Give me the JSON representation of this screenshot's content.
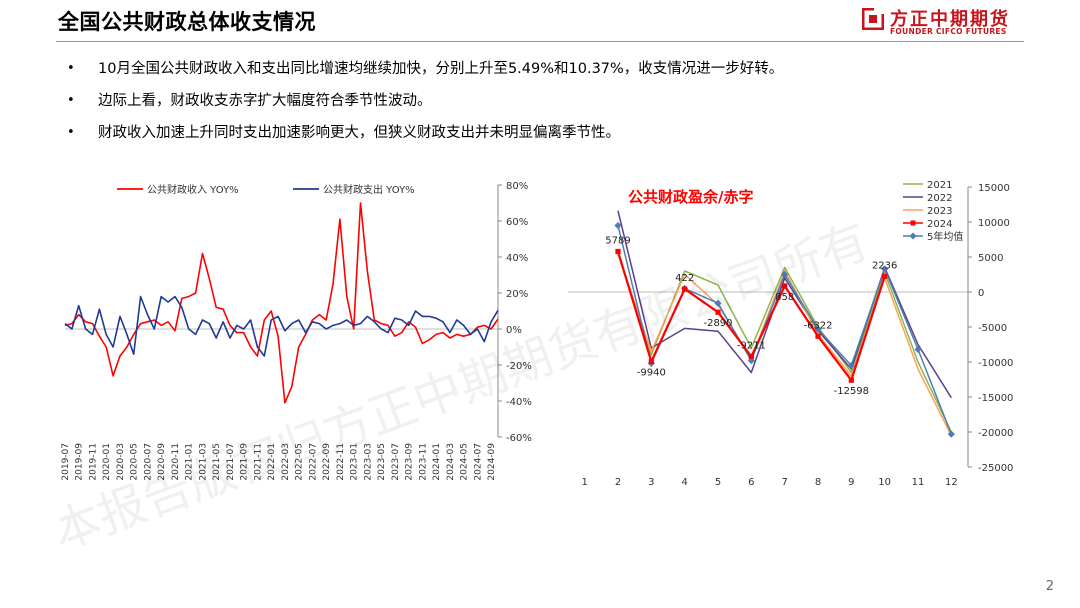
{
  "page": {
    "title": "全国公共财政总体收支情况",
    "page_number": "2",
    "watermark": "本报告版权归方正中期期货有限公司所有"
  },
  "logo": {
    "name_cn": "方正中期期货",
    "name_en": "FOUNDER CIFCO FUTURES",
    "color": "#c8151b"
  },
  "bullets": [
    "10月全国公共财政收入和支出同比增速均继续加快，分别上升至5.49%和10.37%，收支情况进一步好转。",
    "边际上看，财政收支赤字扩大幅度符合季节性波动。",
    "财政收入加速上升同时支出加速影响更大，但狭义财政支出并未明显偏离季节性。"
  ],
  "bullet_marker": "•",
  "chart_data": [
    {
      "type": "line",
      "title": "",
      "x": [
        "2019-07",
        "2019-08",
        "2019-09",
        "2019-10",
        "2019-11",
        "2019-12",
        "2020-01",
        "2020-02",
        "2020-03",
        "2020-04",
        "2020-05",
        "2020-06",
        "2020-07",
        "2020-08",
        "2020-09",
        "2020-10",
        "2020-11",
        "2020-12",
        "2021-01",
        "2021-02",
        "2021-03",
        "2021-04",
        "2021-05",
        "2021-06",
        "2021-07",
        "2021-08",
        "2021-09",
        "2021-10",
        "2021-11",
        "2021-12",
        "2022-01",
        "2022-02",
        "2022-03",
        "2022-04",
        "2022-05",
        "2022-06",
        "2022-07",
        "2022-08",
        "2022-09",
        "2022-10",
        "2022-11",
        "2022-12",
        "2023-01",
        "2023-02",
        "2023-03",
        "2023-04",
        "2023-05",
        "2023-06",
        "2023-07",
        "2023-08",
        "2023-09",
        "2023-10",
        "2023-11",
        "2023-12",
        "2024-01",
        "2024-02",
        "2024-03",
        "2024-04",
        "2024-05",
        "2024-06",
        "2024-07",
        "2024-08",
        "2024-09",
        "2024-10"
      ],
      "x_tick_labels": [
        "2019-07",
        "2019-09",
        "2019-11",
        "2020-01",
        "2020-03",
        "2020-05",
        "2020-07",
        "2020-09",
        "2020-11",
        "2021-01",
        "2021-03",
        "2021-05",
        "2021-07",
        "2021-09",
        "2021-11",
        "2022-01",
        "2022-03",
        "2022-05",
        "2022-07",
        "2022-09",
        "2022-11",
        "2023-01",
        "2023-03",
        "2023-05",
        "2023-07",
        "2023-09",
        "2023-11",
        "2024-01",
        "2024-03",
        "2024-05",
        "2024-07",
        "2024-09"
      ],
      "series": [
        {
          "name": "公共财政收入 YOY%",
          "color": "#ff0000",
          "values": [
            2,
            3,
            8,
            4,
            3,
            -4,
            -10,
            -26,
            -15,
            -10,
            -3,
            3,
            4,
            5,
            2,
            4,
            -1,
            17,
            18,
            20,
            42,
            28,
            12,
            11,
            2,
            -2,
            -2,
            -10,
            -15,
            5,
            10,
            -4,
            -41,
            -32,
            -10,
            -3,
            5,
            8,
            5,
            25,
            61,
            18,
            0,
            70,
            32,
            5,
            3,
            2,
            -4,
            -2,
            4,
            1,
            -8,
            -6,
            -3,
            -2,
            -5,
            -3,
            -4,
            -3,
            1,
            2,
            0,
            5.49
          ]
        },
        {
          "name": "公共财政支出 YOY%",
          "color": "#1f3a93",
          "values": [
            3,
            0,
            13,
            0,
            -3,
            11,
            -3,
            -10,
            7,
            -3,
            -14,
            18,
            8,
            0,
            18,
            15,
            18,
            12,
            0,
            -3,
            5,
            3,
            -5,
            4,
            -5,
            2,
            0,
            5,
            -10,
            -15,
            5,
            7,
            -1,
            3,
            5,
            -2,
            4,
            3,
            0,
            2,
            3,
            5,
            2,
            3,
            7,
            4,
            0,
            -2,
            6,
            5,
            2,
            10,
            7,
            7,
            6,
            4,
            -2,
            5,
            2,
            -3,
            0,
            -7,
            4,
            10.37
          ]
        }
      ],
      "yaxis": {
        "position": "right",
        "ylim": [
          -60,
          80
        ],
        "ticks": [
          "80%",
          "60%",
          "40%",
          "20%",
          "0%",
          "-20%",
          "-40%",
          "-60%"
        ]
      },
      "legend": {
        "placement": "top"
      },
      "grid": false
    },
    {
      "type": "line",
      "title": "公共财政盈余/赤字",
      "title_color": "#ff0000",
      "x": [
        1,
        2,
        3,
        4,
        5,
        6,
        7,
        8,
        9,
        10,
        11,
        12
      ],
      "series": [
        {
          "name": "2021",
          "color": "#8fb54a",
          "values": [
            null,
            5400,
            -9000,
            3000,
            1000,
            -8000,
            3500,
            -5000,
            -11500,
            2800,
            -10000,
            -20000
          ]
        },
        {
          "name": "2022",
          "color": "#5b3f8c",
          "values": [
            null,
            11600,
            -8000,
            -5200,
            -5600,
            -11500,
            2000,
            -5500,
            -11000,
            3500,
            -7500,
            -15100
          ]
        },
        {
          "name": "2023",
          "color": "#f7a35c",
          "values": [
            null,
            5500,
            -8500,
            2500,
            -1800,
            -9500,
            3000,
            -6000,
            -12000,
            2000,
            -11000,
            -20500
          ]
        },
        {
          "name": "2024",
          "color": "#ff0000",
          "values": [
            null,
            5789,
            -9940,
            422,
            -2890,
            -9211,
            858,
            -6322,
            -12598,
            2236,
            null,
            null
          ]
        },
        {
          "name": "5年均值",
          "color": "#4f7cb5",
          "values": [
            null,
            9500,
            -10200,
            500,
            -1600,
            -9800,
            2500,
            -5300,
            -10500,
            3300,
            -8200,
            -20300
          ]
        }
      ],
      "data_labels": [
        "5789",
        "-9940",
        "422",
        "-2890",
        "-9211",
        "858",
        "-6322",
        "-12598",
        "2236"
      ],
      "yaxis": {
        "position": "right",
        "ylim": [
          -25000,
          15000
        ],
        "ticks": [
          "15000",
          "10000",
          "5000",
          "0",
          "-5000",
          "-10000",
          "-15000",
          "-20000",
          "-25000"
        ]
      },
      "x_tick_labels": [
        "1",
        "2",
        "3",
        "4",
        "5",
        "6",
        "7",
        "8",
        "9",
        "10",
        "11",
        "12"
      ],
      "legend": {
        "placement": "top-right"
      },
      "grid": false
    }
  ]
}
